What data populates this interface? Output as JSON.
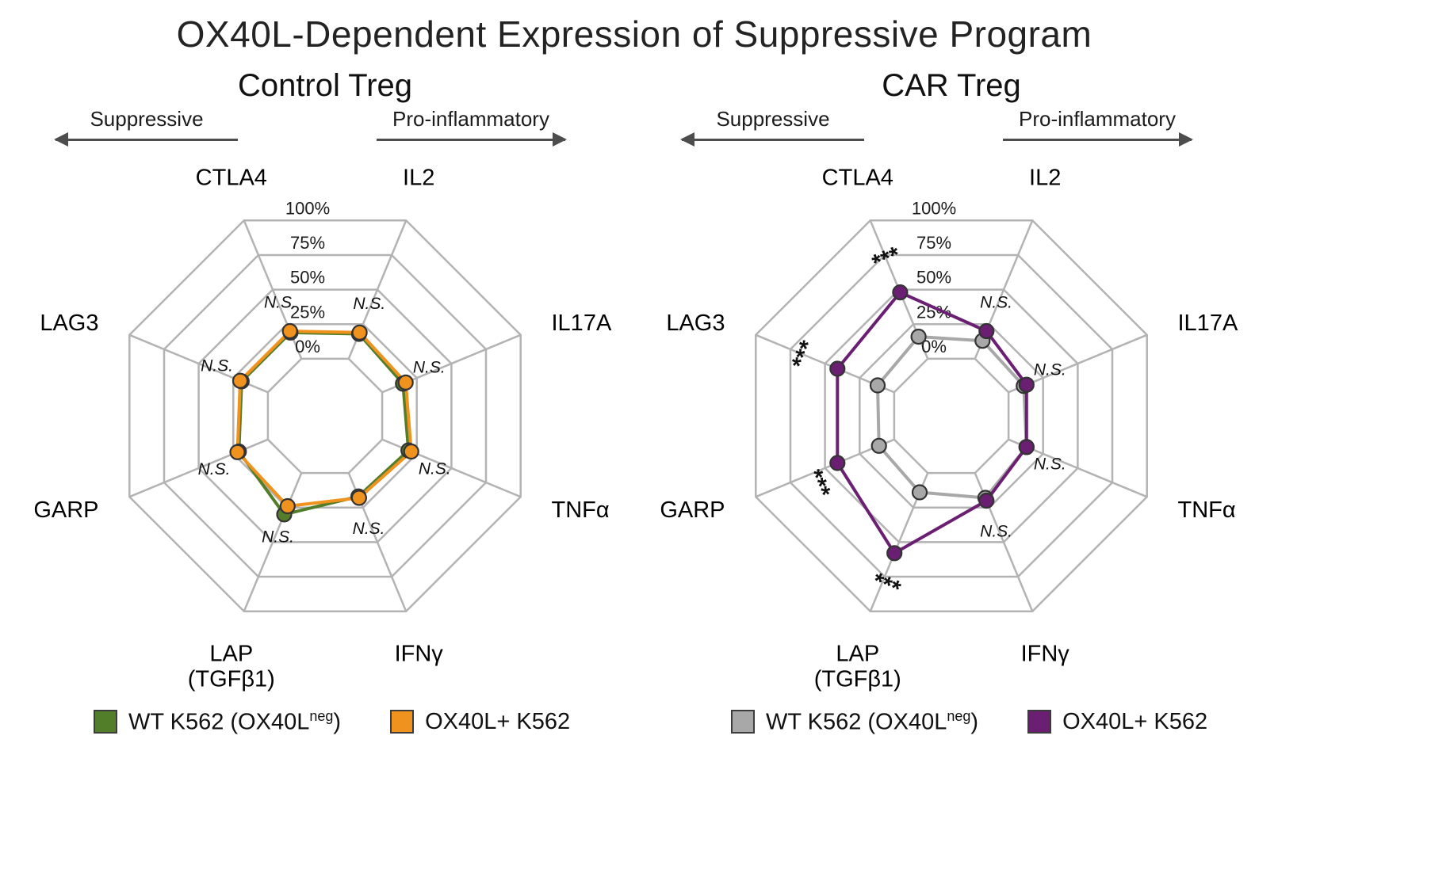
{
  "title": "OX40L-Dependent Expression of Suppressive Program",
  "colors": {
    "grid": "#b3b3b3",
    "arrow": "#4d4d4d",
    "green": "#527d29",
    "orange": "#f0921e",
    "gray": "#a8a8a8",
    "purple": "#6a1f73",
    "point_outline": "#333333"
  },
  "axis_arrows": {
    "left_label": "Suppressive",
    "right_label": "Pro-inflammatory"
  },
  "ring_labels": [
    "0%",
    "25%",
    "50%",
    "75%",
    "100%"
  ],
  "chart_data": [
    {
      "type": "radar",
      "title": "Control Treg",
      "axes": [
        "CTLA4",
        "IL2",
        "IL17A",
        "TNFα",
        "IFNγ",
        "LAP|(TGFβ1)",
        "GARP",
        "LAG3"
      ],
      "rings_percent": [
        0,
        25,
        50,
        75,
        100
      ],
      "axis_range": [
        0,
        100
      ],
      "series": [
        {
          "name": "WT K562 (OX40Lneg)",
          "color_key": "green",
          "values": [
            19,
            18,
            15,
            19,
            17,
            30,
            21,
            19
          ]
        },
        {
          "name": "OX40L+ K562",
          "color_key": "orange",
          "values": [
            20,
            19,
            17,
            21,
            18,
            24,
            22,
            20
          ]
        }
      ],
      "significance": [
        "N.S.",
        "N.S.",
        "N.S.",
        "N.S.",
        "N.S.",
        "N.S.",
        "N.S.",
        "N.S."
      ]
    },
    {
      "type": "radar",
      "title": "CAR Treg",
      "axes": [
        "CTLA4",
        "IL2",
        "IL17A",
        "TNFα",
        "IFNγ",
        "LAP|(TGFβ1)",
        "GARP",
        "LAG3"
      ],
      "rings_percent": [
        0,
        25,
        50,
        75,
        100
      ],
      "axis_range": [
        0,
        100
      ],
      "series": [
        {
          "name": "WT K562 (OX40Lneg)",
          "color_key": "gray",
          "values": [
            16,
            13,
            11,
            13,
            18,
            14,
            11,
            12
          ]
        },
        {
          "name": "OX40L+ K562",
          "color_key": "purple",
          "values": [
            48,
            20,
            13,
            13,
            20,
            58,
            41,
            41
          ]
        }
      ],
      "significance": [
        "***",
        "N.S.",
        "N.S.",
        "N.S.",
        "N.S.",
        "***",
        "***",
        "***"
      ]
    }
  ],
  "legends": [
    {
      "items": [
        {
          "pre": "WT K562 (OX40L",
          "sup": "neg",
          "post": ")",
          "color_key": "green"
        },
        {
          "pre": "OX40L+ K562",
          "sup": "",
          "post": "",
          "color_key": "orange"
        }
      ]
    },
    {
      "items": [
        {
          "pre": "WT K562 (OX40L",
          "sup": "neg",
          "post": ")",
          "color_key": "gray"
        },
        {
          "pre": "OX40L+ K562",
          "sup": "",
          "post": "",
          "color_key": "purple"
        }
      ]
    }
  ]
}
